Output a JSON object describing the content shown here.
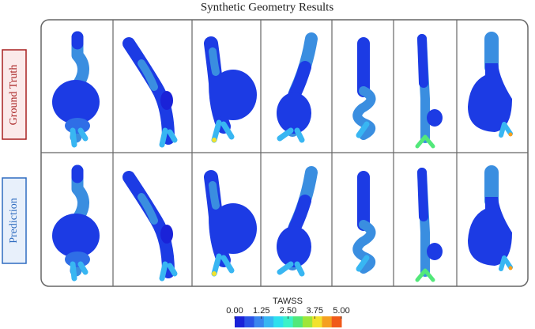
{
  "title": "Synthetic Geometry Results",
  "rows": [
    "Ground Truth",
    "Prediction"
  ],
  "colorbar": {
    "title": "TAWSS",
    "lim": [
      0,
      5
    ],
    "ticks": [
      {
        "value": 0,
        "label": "0.00"
      },
      {
        "value": 1.25,
        "label": "1.25"
      },
      {
        "value": 2.5,
        "label": "2.50"
      },
      {
        "value": 3.75,
        "label": "3.75"
      },
      {
        "value": 5,
        "label": "5.00"
      }
    ],
    "colors": [
      "#1a22d8",
      "#2a52e6",
      "#3a86ee",
      "#38b6f2",
      "#2ee0ee",
      "#3cf2c8",
      "#52e87a",
      "#9ee63a",
      "#f2e22c",
      "#f5a020",
      "#f05a1a"
    ]
  }
}
